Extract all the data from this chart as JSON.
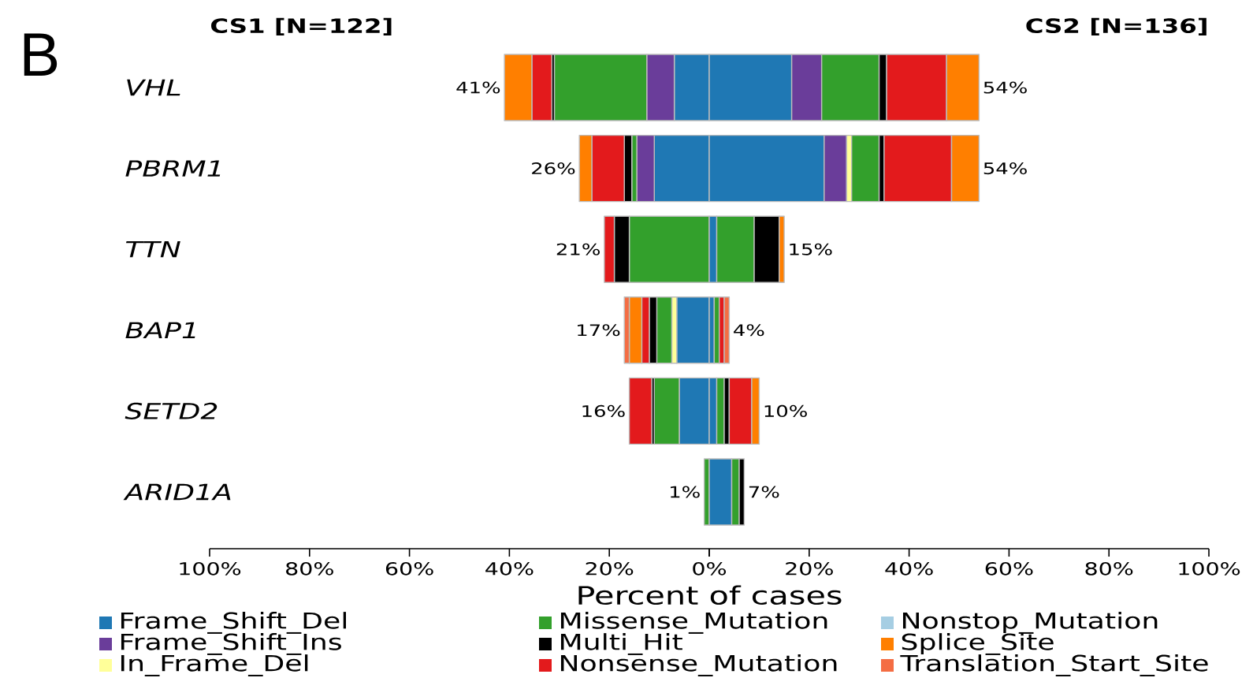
{
  "chart_data": [
    {
      "type": "bar",
      "orientation": "horizontal",
      "stacked": true,
      "title": "CS1 [N=122]",
      "xlabel": "Percent of cases",
      "annotations": [
        "B"
      ],
      "categories": [
        "VHL",
        "PBRM1",
        "TTN",
        "BAP1",
        "SETD2",
        "ARID1A"
      ],
      "xlim": [
        100,
        0
      ],
      "xticks": [
        {
          "value": 100,
          "label": "100%"
        },
        {
          "value": 80,
          "label": "80%"
        },
        {
          "value": 60,
          "label": "60%"
        },
        {
          "value": 40,
          "label": "40%"
        },
        {
          "value": 20,
          "label": "20%"
        },
        {
          "value": 0,
          "label": "0%"
        }
      ],
      "series": [
        {
          "name": "Frame_Shift_Del",
          "color": "#1f78b4",
          "values": [
            7.0,
            11.0,
            null,
            6.5,
            6.0,
            null
          ]
        },
        {
          "name": "Frame_Shift_Ins",
          "color": "#6a3d9a",
          "values": [
            5.5,
            3.5,
            null,
            null,
            null,
            null
          ]
        },
        {
          "name": "In_Frame_Del",
          "color": "#ffff99",
          "values": [
            null,
            null,
            null,
            1.0,
            null,
            null
          ]
        },
        {
          "name": "Missense_Mutation",
          "color": "#33a02c",
          "values": [
            18.5,
            1.0,
            16.0,
            3.0,
            5.0,
            1.0
          ]
        },
        {
          "name": "Multi_Hit",
          "color": "#000000",
          "values": [
            0.5,
            1.5,
            3.0,
            1.5,
            0.5,
            null
          ]
        },
        {
          "name": "Nonsense_Mutation",
          "color": "#e31a1c",
          "values": [
            4.0,
            6.5,
            2.0,
            1.5,
            4.5,
            null
          ]
        },
        {
          "name": "Nonstop_Mutation",
          "color": "#a6cee3",
          "values": [
            null,
            null,
            null,
            null,
            null,
            null
          ]
        },
        {
          "name": "Splice_Site",
          "color": "#ff7f00",
          "values": [
            5.5,
            2.5,
            null,
            2.5,
            null,
            null
          ]
        },
        {
          "name": "Translation_Start_Site",
          "color": "#f46d43",
          "values": [
            null,
            null,
            null,
            1.0,
            null,
            null
          ]
        }
      ],
      "totals": [
        "41%",
        "26%",
        "21%",
        "17%",
        "16%",
        "1%"
      ],
      "legend": "bottom"
    },
    {
      "type": "bar",
      "orientation": "horizontal",
      "stacked": true,
      "title": "CS2 [N=136]",
      "categories": [
        null,
        null,
        null,
        null,
        null,
        null
      ],
      "xlim": [
        0,
        100
      ],
      "xticks": [
        {
          "value": 0,
          "label": null
        },
        {
          "value": 20,
          "label": "20%"
        },
        {
          "value": 40,
          "label": "40%"
        },
        {
          "value": 60,
          "label": "60%"
        },
        {
          "value": 80,
          "label": "80%"
        },
        {
          "value": 100,
          "label": "100%"
        }
      ],
      "series": [
        {
          "color": "#1f78b4",
          "values": [
            16.5,
            23.0,
            1.5,
            1.0,
            1.5,
            4.5
          ]
        },
        {
          "color": "#6a3d9a",
          "values": [
            6.0,
            4.5,
            null,
            null,
            null,
            null
          ]
        },
        {
          "color": "#ffff99",
          "values": [
            null,
            1.0,
            null,
            null,
            null,
            null
          ]
        },
        {
          "color": "#33a02c",
          "values": [
            11.5,
            5.5,
            7.5,
            1.0,
            1.5,
            1.5
          ]
        },
        {
          "color": "#000000",
          "values": [
            1.5,
            1.0,
            5.0,
            null,
            1.0,
            1.0
          ]
        },
        {
          "color": "#e31a1c",
          "values": [
            12.0,
            13.5,
            null,
            1.0,
            4.5,
            null
          ]
        },
        {
          "color": "#ff7f00",
          "values": [
            6.5,
            5.5,
            1.0,
            null,
            1.5,
            null
          ]
        },
        {
          "color": "#f46d43",
          "values": [
            null,
            null,
            null,
            1.0,
            null,
            null
          ]
        }
      ],
      "totals": [
        "54%",
        "54%",
        "15%",
        "4%",
        "10%",
        "7%"
      ]
    }
  ]
}
